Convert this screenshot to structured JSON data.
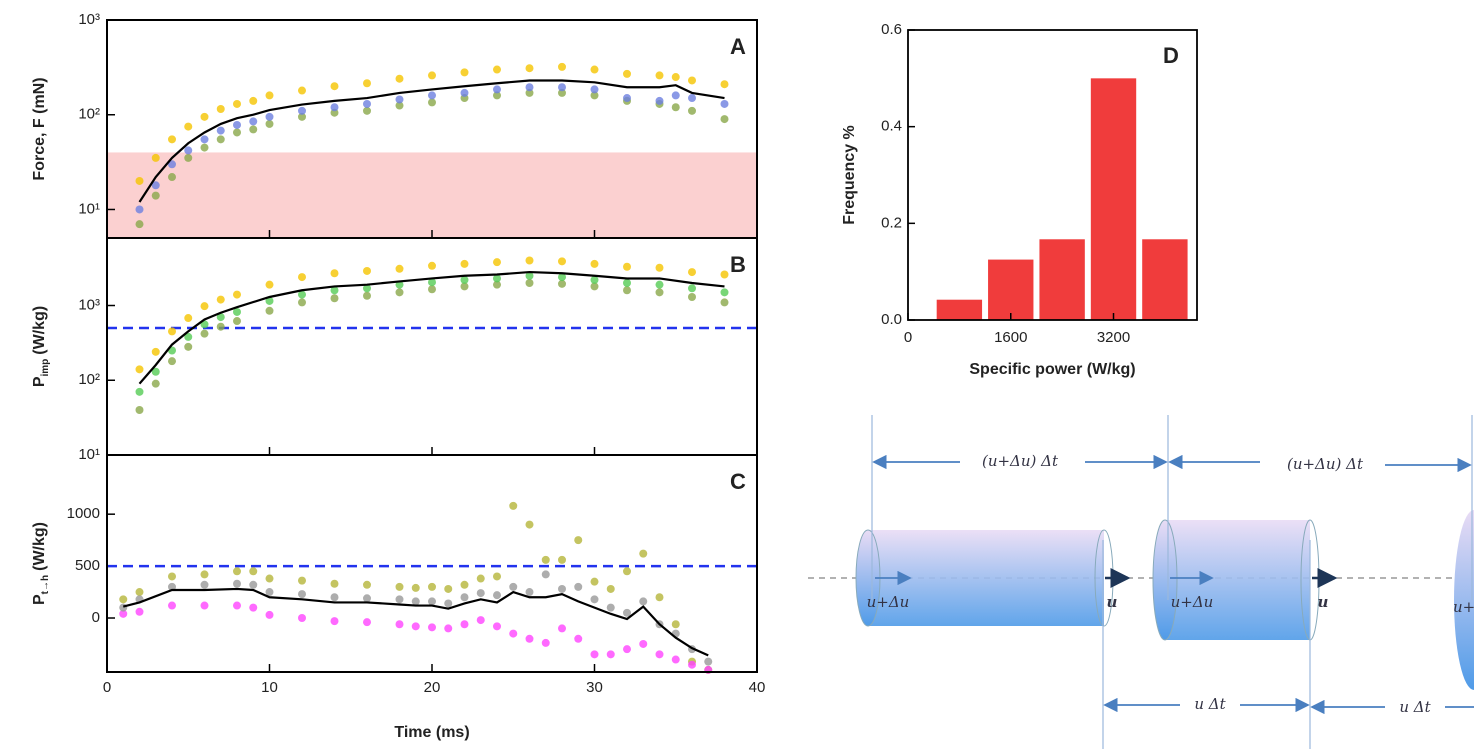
{
  "chart_data": [
    {
      "type": "line",
      "panel": "A",
      "ylabel": "Force, F (mN)",
      "log": true,
      "ylim": [
        5,
        1000
      ],
      "yticks": [
        {
          "value": 10,
          "label": "10¹"
        },
        {
          "value": 100,
          "label": "10²"
        },
        {
          "value": 1000,
          "label": "10³"
        }
      ],
      "shaded_below": 40,
      "shade_color": "#fbd0d0",
      "x": [
        2,
        3,
        4,
        5,
        6,
        7,
        8,
        9,
        10,
        12,
        14,
        16,
        18,
        20,
        22,
        24,
        26,
        28,
        30,
        32,
        34,
        35,
        36,
        38
      ],
      "series": [
        {
          "color": "#f5c400",
          "style": "dots",
          "values": [
            20,
            35,
            55,
            75,
            95,
            115,
            130,
            140,
            160,
            180,
            200,
            215,
            240,
            260,
            280,
            300,
            310,
            320,
            300,
            270,
            260,
            250,
            230,
            210
          ]
        },
        {
          "color": "#8aa84a",
          "style": "dots",
          "values": [
            7,
            14,
            22,
            35,
            45,
            55,
            65,
            70,
            80,
            95,
            105,
            110,
            125,
            135,
            150,
            160,
            170,
            170,
            160,
            140,
            130,
            120,
            110,
            90
          ]
        },
        {
          "color": "#6d7fe0",
          "style": "dots",
          "values": [
            10,
            18,
            30,
            42,
            55,
            68,
            78,
            85,
            95,
            110,
            120,
            130,
            145,
            160,
            170,
            185,
            195,
            195,
            185,
            150,
            140,
            160,
            150,
            130
          ]
        },
        {
          "color": "#000000",
          "style": "line",
          "values": [
            12,
            22,
            35,
            50,
            65,
            80,
            92,
            100,
            112,
            128,
            140,
            150,
            170,
            185,
            200,
            215,
            230,
            230,
            220,
            195,
            195,
            205,
            170,
            150
          ]
        }
      ]
    },
    {
      "type": "line",
      "panel": "B",
      "ylabel": "P",
      "ylabel_sub": "imp",
      "ylabel_unit": "(W/kg)",
      "log": true,
      "ylim": [
        10,
        8000
      ],
      "yticks": [
        {
          "value": 10,
          "label": "10¹"
        },
        {
          "value": 100,
          "label": "10²"
        },
        {
          "value": 1000,
          "label": "10³"
        }
      ],
      "hline": 500,
      "hline_color": "#2233ee",
      "x": [
        2,
        3,
        4,
        5,
        6,
        7,
        8,
        10,
        12,
        14,
        16,
        18,
        20,
        22,
        24,
        26,
        28,
        30,
        32,
        34,
        36,
        38
      ],
      "series": [
        {
          "color": "#f5c400",
          "style": "dots",
          "values": [
            140,
            240,
            450,
            680,
            980,
            1200,
            1400,
            1900,
            2400,
            2700,
            2900,
            3100,
            3400,
            3600,
            3800,
            4000,
            3900,
            3600,
            3300,
            3200,
            2800,
            2600
          ]
        },
        {
          "color": "#8aa84a",
          "style": "dots",
          "values": [
            40,
            90,
            180,
            280,
            420,
            520,
            620,
            850,
            1100,
            1250,
            1350,
            1500,
            1650,
            1800,
            1900,
            2000,
            1950,
            1800,
            1600,
            1500,
            1300,
            1100
          ]
        },
        {
          "color": "#55cc55",
          "style": "dots",
          "values": [
            70,
            130,
            250,
            380,
            560,
            700,
            820,
            1150,
            1400,
            1600,
            1700,
            1900,
            2050,
            2200,
            2300,
            2500,
            2400,
            2200,
            2000,
            1900,
            1700,
            1500
          ]
        },
        {
          "color": "#000000",
          "style": "line",
          "values": [
            90,
            160,
            300,
            450,
            650,
            800,
            950,
            1300,
            1600,
            1800,
            1900,
            2100,
            2300,
            2500,
            2600,
            2800,
            2700,
            2500,
            2300,
            2300,
            2000,
            1800
          ]
        }
      ]
    },
    {
      "type": "line",
      "panel": "C",
      "ylabel": "P",
      "ylabel_sub": "t→h",
      "ylabel_unit": "(W/kg)",
      "log": false,
      "ylim": [
        -520,
        1570
      ],
      "yticks": [
        0,
        500,
        1000
      ],
      "hline": 500,
      "hline_color": "#2233ee",
      "xlabel": "Time (ms)",
      "xlim": [
        0,
        40
      ],
      "xticks": [
        0,
        10,
        20,
        30,
        40
      ],
      "x": [
        1,
        2,
        4,
        6,
        8,
        9,
        10,
        12,
        14,
        16,
        18,
        19,
        20,
        21,
        22,
        23,
        24,
        25,
        26,
        27,
        28,
        29,
        30,
        31,
        32,
        33,
        34,
        35,
        36,
        37
      ],
      "series": [
        {
          "color": "#b5b53a",
          "style": "dots",
          "values": [
            180,
            250,
            400,
            420,
            450,
            450,
            380,
            360,
            330,
            320,
            300,
            290,
            300,
            280,
            320,
            380,
            400,
            1080,
            900,
            560,
            560,
            750,
            350,
            280,
            450,
            620,
            200,
            -60,
            -420,
            -500
          ]
        },
        {
          "color": "#ff44ff",
          "style": "dots",
          "values": [
            40,
            60,
            120,
            120,
            120,
            100,
            30,
            0,
            -30,
            -40,
            -60,
            -80,
            -90,
            -100,
            -60,
            -20,
            -80,
            -150,
            -200,
            -240,
            -100,
            -200,
            -350,
            -350,
            -300,
            -250,
            -350,
            -400,
            -450,
            -500
          ]
        },
        {
          "color": "#999999",
          "style": "dots",
          "values": [
            100,
            180,
            300,
            320,
            330,
            320,
            250,
            230,
            200,
            190,
            180,
            160,
            160,
            140,
            200,
            240,
            220,
            300,
            250,
            420,
            280,
            300,
            180,
            100,
            50,
            160,
            -60,
            -150,
            -300,
            -420
          ]
        },
        {
          "color": "#000000",
          "style": "line",
          "values": [
            110,
            150,
            270,
            270,
            280,
            270,
            200,
            180,
            150,
            150,
            130,
            120,
            120,
            90,
            140,
            180,
            150,
            250,
            200,
            200,
            230,
            160,
            100,
            40,
            -10,
            110,
            -60,
            -190,
            -290,
            -360
          ]
        }
      ]
    },
    {
      "type": "histogram",
      "panel": "D",
      "xlabel": "Specific power (W/kg)",
      "ylabel": "Frequency %",
      "color": "#f03c3c",
      "bins": [
        400,
        1200,
        2000,
        2800,
        3600,
        4400
      ],
      "values": [
        0.042,
        0.125,
        0.167,
        0.5,
        0.167
      ],
      "xlim": [
        0,
        4500
      ],
      "xticks": [
        0,
        1600,
        3200
      ],
      "ylim": [
        0,
        0.6
      ],
      "yticks": [
        {
          "value": 0,
          "label": "0.0"
        },
        0.2,
        0.4,
        0.6
      ]
    }
  ],
  "diagram": {
    "top_spans": [
      "(u+Δu) Δt",
      "(u+Δu) Δt"
    ],
    "bottom_spans": [
      "u Δt",
      "u Δt"
    ],
    "inlet_labels": [
      "u+Δu",
      "u+Δu",
      "u+"
    ],
    "outlet_labels": [
      "u",
      "u"
    ]
  }
}
